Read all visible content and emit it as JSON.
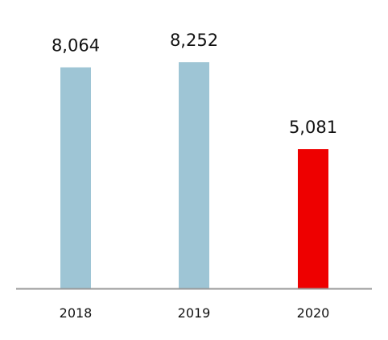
{
  "chart_data": {
    "type": "bar",
    "categories": [
      "2018",
      "2019",
      "2020"
    ],
    "values": [
      8064,
      8252,
      5081
    ],
    "value_labels": [
      "8,064",
      "8,252",
      "5,081"
    ],
    "title": "",
    "xlabel": "",
    "ylabel": "",
    "ylim": [
      0,
      10000
    ],
    "grid": false,
    "colors": [
      "#9ec5d5",
      "#9ec5d5",
      "#ee0000"
    ],
    "baseline_color": "#999999"
  }
}
